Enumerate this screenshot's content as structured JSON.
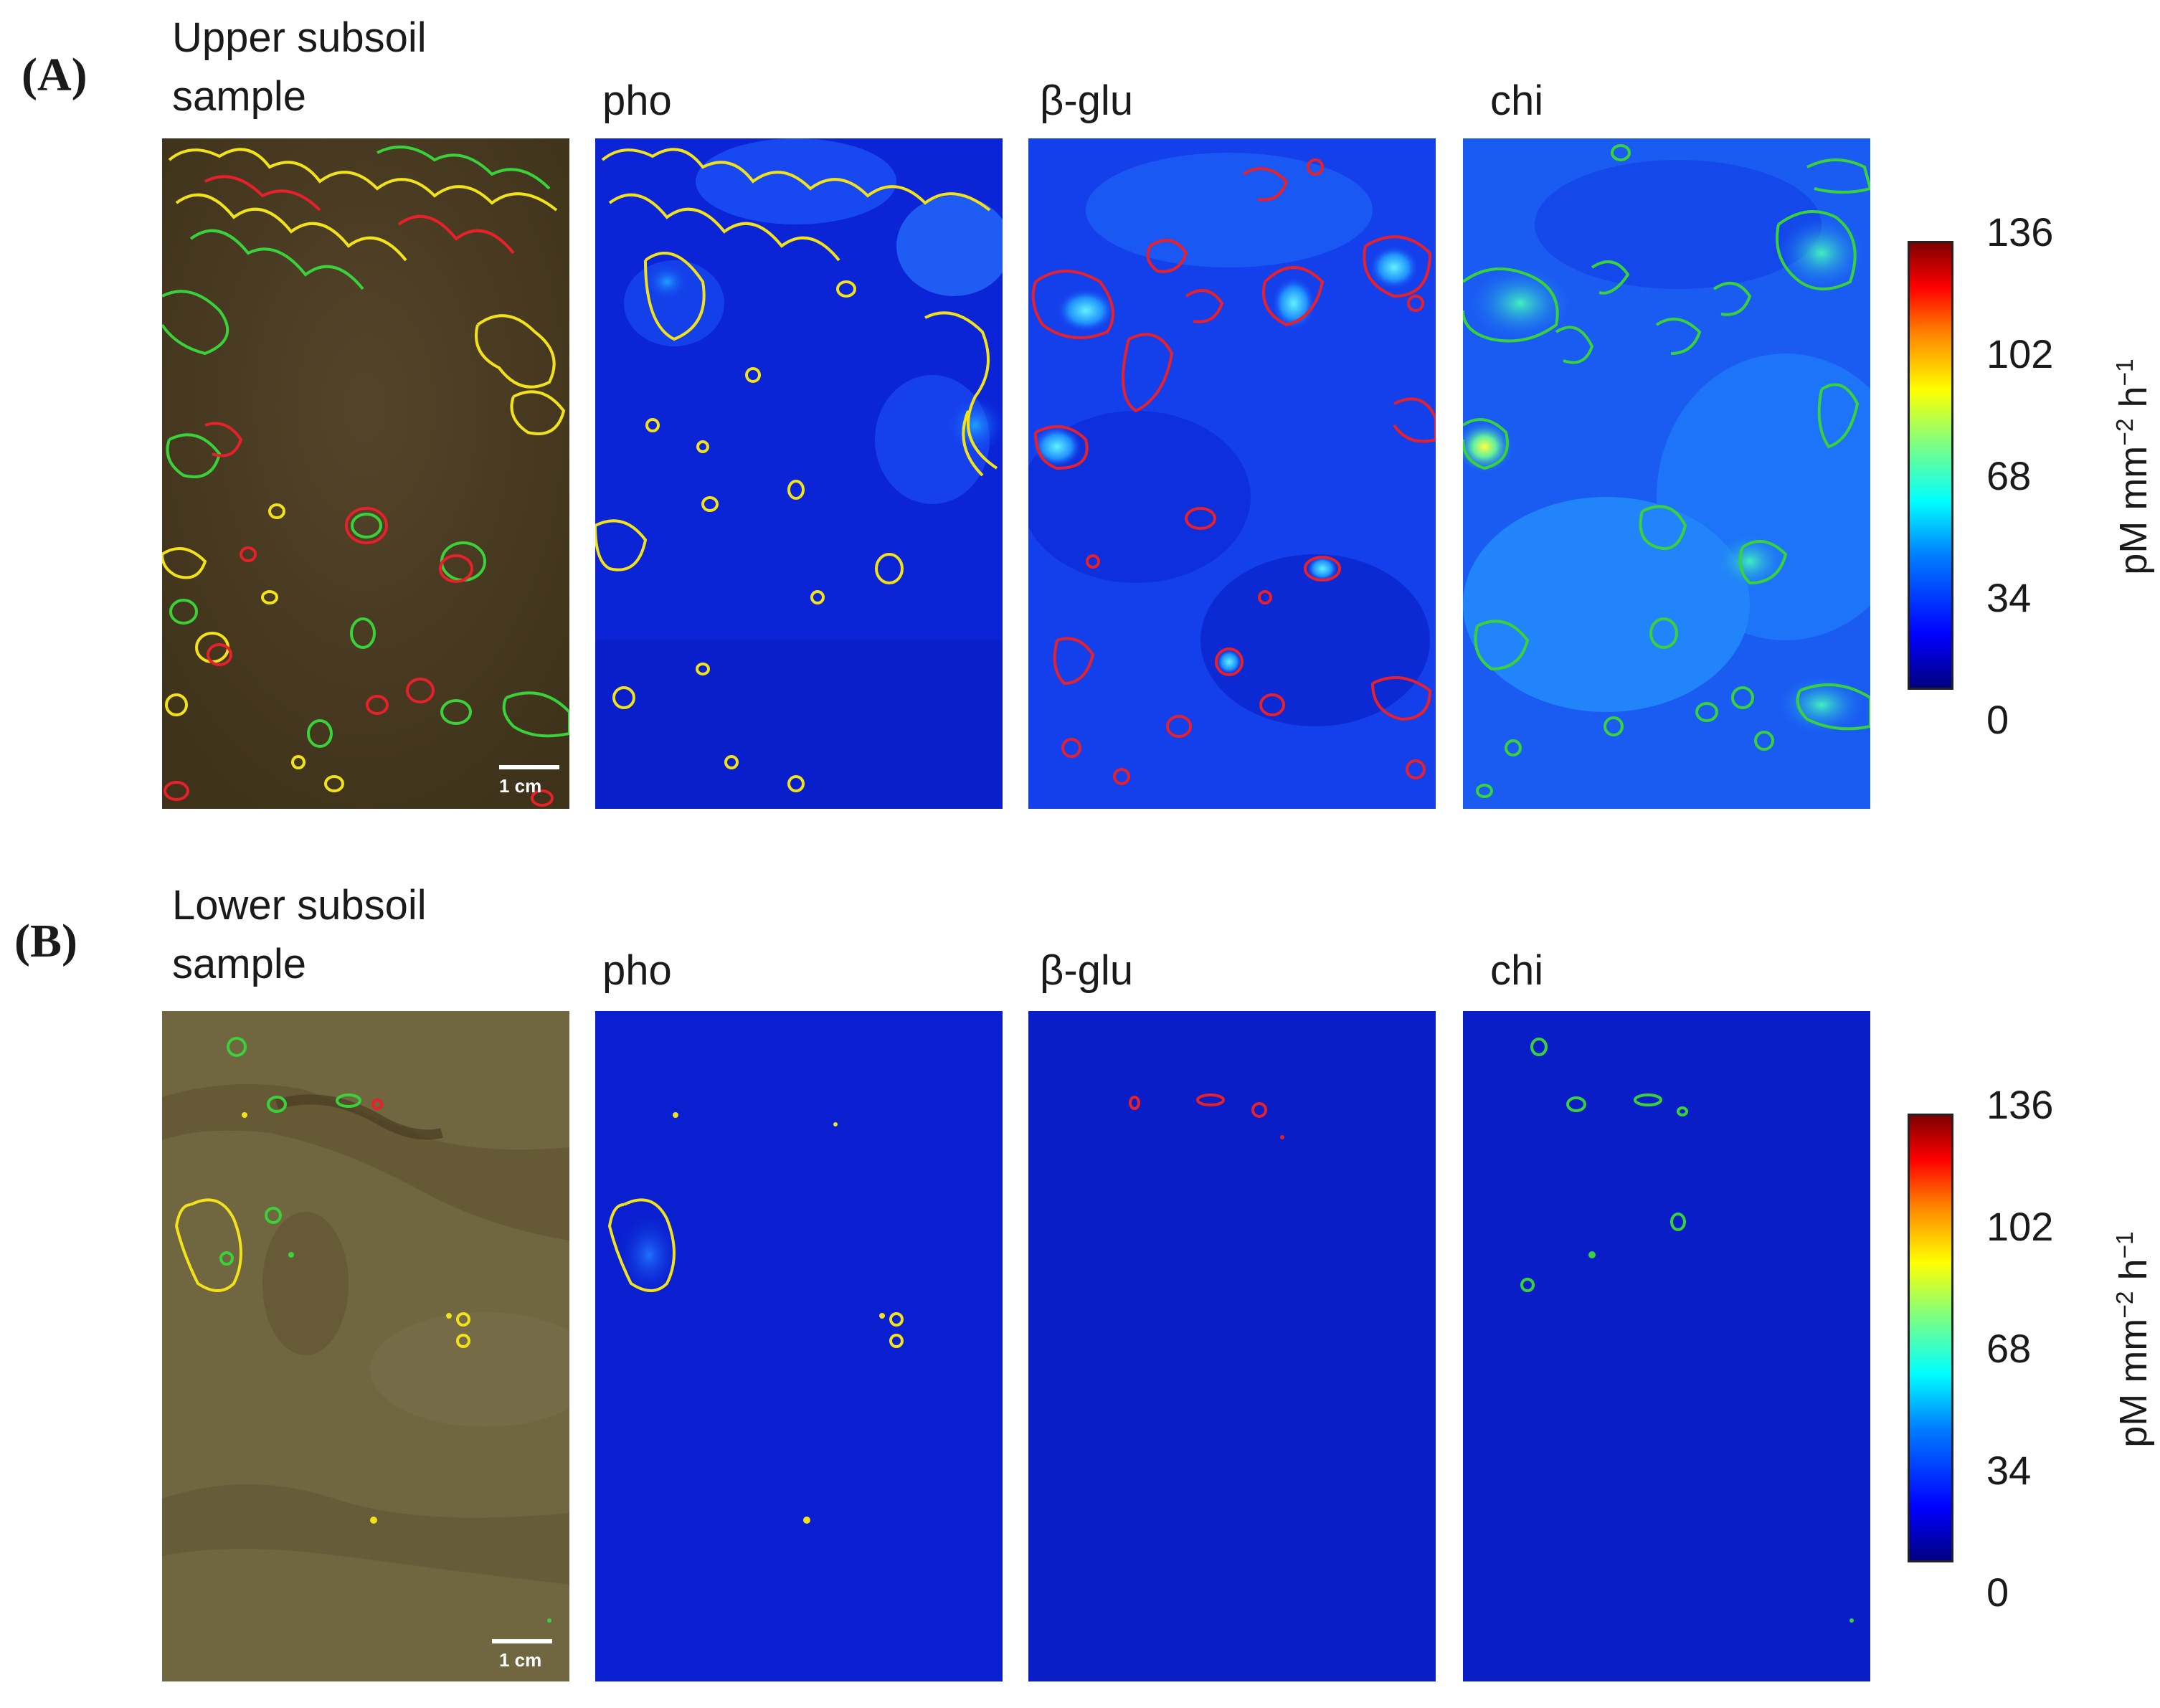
{
  "figure": {
    "panel_a": {
      "letter": "(A)",
      "sample_title_line1": "Upper subsoil",
      "sample_title_line2": "sample",
      "columns": [
        "pho",
        "β-glu",
        "chi"
      ],
      "scale_bar": "1 cm",
      "colorbar": {
        "ticks": [
          "136",
          "102",
          "68",
          "34",
          "0"
        ],
        "unit_main": "pM mm",
        "unit_exp1": "−2",
        "unit_mid": " h",
        "unit_exp2": "−1"
      }
    },
    "panel_b": {
      "letter": "(B)",
      "sample_title_line1": "Lower subsoil",
      "sample_title_line2": "sample",
      "columns": [
        "pho",
        "β-glu",
        "chi"
      ],
      "scale_bar": "1 cm",
      "colorbar": {
        "ticks": [
          "136",
          "102",
          "68",
          "34",
          "0"
        ],
        "unit_main": "pM mm",
        "unit_exp1": "−2",
        "unit_mid": " h",
        "unit_exp2": "−1"
      }
    },
    "colors": {
      "pho_contour": "#f2e21a",
      "beta_glu_contour": "#e8202a",
      "chi_contour": "#3ad23a",
      "soil_upper": "#4a3c1e",
      "soil_lower": "#6e6440",
      "zymogram_bg": "#0a20d0"
    }
  }
}
